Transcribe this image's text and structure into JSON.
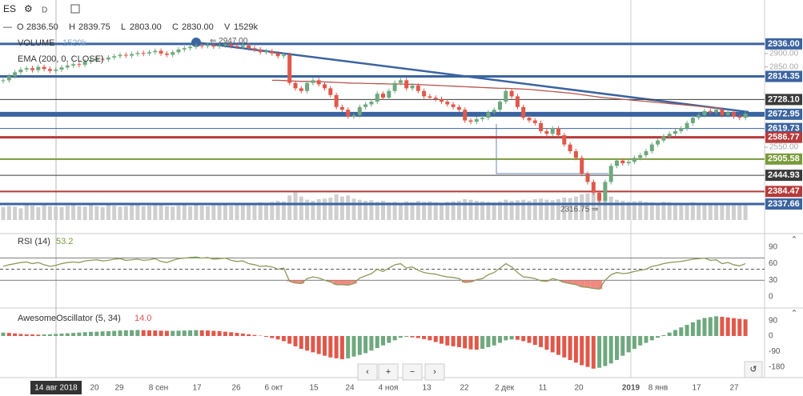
{
  "chart_data": {
    "type": "candlestick",
    "symbol": "ES",
    "ohlc": {
      "o_label": "O",
      "o": "2836.50",
      "h_label": "H",
      "h": "2839.75",
      "l_label": "L",
      "l": "2803.00",
      "c_label": "C",
      "c": "2830.00",
      "v_label": "V",
      "v": "1529k"
    },
    "volume_title": "VOLUME",
    "volume_value": "1529k",
    "ema_title": "EMA (200, 0, CLOSE)",
    "ylim": [
      2233,
      3100
    ],
    "yticks": [
      {
        "value": 2900,
        "label": "2900.00"
      },
      {
        "value": 2850,
        "label": "2850.00"
      },
      {
        "value": 2550,
        "label": "2550.00"
      }
    ],
    "up_color": "#6fa87e",
    "down_color": "#e0584a",
    "close": [
      2800,
      2815,
      2830,
      2840,
      2845,
      2838,
      2850,
      2842,
      2835,
      2840,
      2848,
      2855,
      2860,
      2858,
      2870,
      2875,
      2880,
      2878,
      2885,
      2890,
      2895,
      2892,
      2898,
      2902,
      2900,
      2905,
      2910,
      2900,
      2895,
      2905,
      2915,
      2920,
      2925,
      2930,
      2928,
      2932,
      2926,
      2930,
      2934,
      2928,
      2925,
      2930,
      2920,
      2915,
      2905,
      2908,
      2900,
      2890,
      2895,
      2790,
      2770,
      2760,
      2790,
      2800,
      2785,
      2770,
      2745,
      2700,
      2690,
      2665,
      2670,
      2700,
      2710,
      2720,
      2750,
      2735,
      2760,
      2790,
      2800,
      2770,
      2780,
      2760,
      2740,
      2735,
      2730,
      2720,
      2710,
      2700,
      2690,
      2650,
      2645,
      2655,
      2660,
      2680,
      2690,
      2720,
      2760,
      2740,
      2700,
      2660,
      2650,
      2640,
      2610,
      2600,
      2620,
      2595,
      2560,
      2535,
      2510,
      2450,
      2420,
      2380,
      2350,
      2420,
      2480,
      2500,
      2490,
      2495,
      2510,
      2520,
      2535,
      2560,
      2575,
      2590,
      2600,
      2610,
      2620,
      2640,
      2660,
      2670,
      2685,
      2680,
      2690,
      2670,
      2680,
      2665,
      2660,
      2675
    ],
    "ema_color": "#b5564f",
    "ema": [
      null,
      null,
      null,
      null,
      null,
      null,
      null,
      null,
      null,
      null,
      null,
      null,
      null,
      null,
      null,
      null,
      null,
      null,
      null,
      null,
      null,
      null,
      null,
      null,
      null,
      null,
      null,
      null,
      null,
      null,
      null,
      null,
      null,
      null,
      null,
      null,
      null,
      null,
      null,
      null,
      null,
      null,
      null,
      null,
      null,
      null,
      2800,
      2800,
      2799,
      2798,
      2797,
      2796,
      2796,
      2795,
      2795,
      2794,
      2793,
      2792,
      2791,
      2790,
      2789,
      2789,
      2788,
      2788,
      2787,
      2787,
      2786,
      2786,
      2786,
      2785,
      2785,
      2784,
      2783,
      2782,
      2781,
      2780,
      2779,
      2778,
      2777,
      2776,
      2775,
      2774,
      2773,
      2772,
      2771,
      2770,
      2770,
      2769,
      2768,
      2767,
      2766,
      2764,
      2762,
      2760,
      2758,
      2756,
      2754,
      2752,
      2749,
      2746,
      2743,
      2740,
      2737,
      2735,
      2733,
      2731,
      2729,
      2727,
      2725,
      2723,
      2721,
      2719,
      2717,
      2715,
      2713,
      2711,
      2709,
      2707,
      2705,
      2703,
      2701,
      2699,
      2697,
      2695
    ],
    "volume_color": "#cfcfcf",
    "vlim": [
      0,
      3000
    ],
    "volume": [
      1200,
      1300,
      1250,
      1100,
      1400,
      1350,
      1200,
      1500,
      1300,
      1250,
      1200,
      1350,
      1400,
      1300,
      1250,
      1450,
      1300,
      1200,
      1400,
      1350,
      1250,
      1300,
      1450,
      1400,
      1300,
      1350,
      1500,
      1400,
      1300,
      1250,
      1350,
      1400,
      1300,
      1450,
      1350,
      1300,
      1400,
      1500,
      1450,
      1350,
      1600,
      1500,
      1400,
      1550,
      1650,
      1500,
      1700,
      1800,
      1750,
      2300,
      2600,
      2200,
      1900,
      1800,
      1950,
      2000,
      2100,
      2400,
      2200,
      2300,
      2000,
      1900,
      1800,
      1850,
      1700,
      1800,
      1650,
      1700,
      1600,
      1750,
      1650,
      1800,
      1700,
      1750,
      1650,
      1600,
      1700,
      1750,
      1800,
      1950,
      1900,
      1800,
      1750,
      1700,
      1650,
      1750,
      1900,
      1800,
      1850,
      1900,
      1800,
      1950,
      2000,
      1900,
      1850,
      1950,
      2100,
      2050,
      2200,
      2400,
      2500,
      2700,
      2300,
      2400,
      2200,
      1900,
      1800,
      1700,
      1750,
      1800,
      1700,
      1650,
      1600,
      1700,
      1650,
      1600,
      1550,
      1600,
      1650,
      1550,
      1500,
      1450,
      1550,
      1500,
      1450,
      1400,
      1450,
      1400
    ],
    "annotations": [
      {
        "value": 2947,
        "label": "⇐ 2947.00"
      },
      {
        "value": 2316.75,
        "label": "2316.75 ⇒"
      }
    ],
    "levels": [
      {
        "value": 2936,
        "label": "2936.00",
        "color": "#3b64a0",
        "width": 3
      },
      {
        "value": 2814.35,
        "label": "2814.35",
        "color": "#3b64a0",
        "width": 3
      },
      {
        "value": 2728.1,
        "label": "2728.10",
        "color": "#3a3a3a",
        "width": 1
      },
      {
        "value": 2672.95,
        "label": "2672.95",
        "color": "#3b64a0",
        "width": 6
      },
      {
        "value": 2619.73,
        "label": "2619.73",
        "color": "#3b64a0",
        "width": 1
      },
      {
        "value": 2586.77,
        "label": "2586.77",
        "color": "#b53a3a",
        "width": 3
      },
      {
        "value": 2505.58,
        "label": "2505.58",
        "color": "#7a9a3a",
        "width": 2
      },
      {
        "value": 2444.93,
        "label": "2444.93",
        "color": "#3a3a3a",
        "width": 1
      },
      {
        "value": 2384.47,
        "label": "2384.47",
        "color": "#b53a3a",
        "width": 2
      },
      {
        "value": 2337.66,
        "label": "2337.66",
        "color": "#3b64a0",
        "width": 3
      }
    ],
    "rsi": {
      "title": "RSI (14)",
      "current": "53.2",
      "color": "#8a9a5b",
      "ylim": [
        -13,
        110
      ],
      "yticks": [
        90,
        60,
        30,
        0
      ],
      "bands": [
        70,
        30
      ],
      "mid": 50,
      "values": [
        55,
        58,
        60,
        62,
        63,
        60,
        62,
        58,
        55,
        57,
        60,
        62,
        63,
        62,
        65,
        66,
        67,
        65,
        66,
        68,
        69,
        66,
        67,
        68,
        66,
        67,
        69,
        64,
        62,
        66,
        69,
        70,
        71,
        72,
        70,
        71,
        68,
        69,
        70,
        66,
        64,
        65,
        60,
        58,
        55,
        56,
        54,
        50,
        52,
        28,
        25,
        24,
        33,
        36,
        34,
        30,
        27,
        22,
        22,
        21,
        24,
        34,
        38,
        42,
        50,
        46,
        52,
        58,
        60,
        52,
        54,
        48,
        44,
        42,
        41,
        38,
        36,
        35,
        33,
        26,
        27,
        31,
        33,
        40,
        44,
        52,
        60,
        54,
        44,
        36,
        35,
        33,
        29,
        28,
        33,
        30,
        26,
        24,
        22,
        18,
        17,
        15,
        14,
        30,
        40,
        44,
        42,
        43,
        46,
        48,
        50,
        55,
        57,
        60,
        62,
        63,
        64,
        66,
        68,
        69,
        70,
        66,
        67,
        60,
        62,
        58,
        56,
        60
      ]
    },
    "ao": {
      "title": "AwesomeOscillator (5, 34)",
      "current": "14.0",
      "ylim": [
        -233,
        163
      ],
      "yticks": [
        90,
        0,
        -90,
        -180
      ],
      "values": [
        20,
        18,
        15,
        12,
        10,
        9,
        8,
        9,
        10,
        12,
        14,
        16,
        18,
        20,
        22,
        24,
        25,
        27,
        28,
        30,
        32,
        33,
        34,
        35,
        34,
        33,
        32,
        31,
        30,
        30,
        31,
        32,
        33,
        34,
        33,
        32,
        30,
        28,
        25,
        22,
        18,
        14,
        10,
        6,
        2,
        -5,
        -12,
        -20,
        -30,
        -45,
        -60,
        -75,
        -85,
        -95,
        -105,
        -115,
        -125,
        -130,
        -135,
        -130,
        -120,
        -110,
        -100,
        -85,
        -70,
        -55,
        -40,
        -25,
        -10,
        -5,
        -8,
        -12,
        -18,
        -25,
        -35,
        -45,
        -55,
        -60,
        -65,
        -72,
        -78,
        -80,
        -75,
        -65,
        -55,
        -40,
        -25,
        -20,
        -22,
        -30,
        -40,
        -52,
        -65,
        -80,
        -95,
        -110,
        -125,
        -140,
        -155,
        -170,
        -180,
        -190,
        -185,
        -175,
        -160,
        -140,
        -115,
        -95,
        -75,
        -55,
        -40,
        -25,
        -10,
        5,
        20,
        35,
        50,
        65,
        80,
        95,
        105,
        110,
        115,
        112,
        108,
        104,
        100,
        97
      ]
    },
    "dates": [
      "14 авг 2018",
      "20",
      "29",
      "8 сен",
      "17",
      "26",
      "6 окт",
      "15",
      "24",
      "4 ноя",
      "13",
      "22",
      "2 дек",
      "11",
      "20",
      "2019",
      "8 янв",
      "17",
      "27"
    ]
  }
}
